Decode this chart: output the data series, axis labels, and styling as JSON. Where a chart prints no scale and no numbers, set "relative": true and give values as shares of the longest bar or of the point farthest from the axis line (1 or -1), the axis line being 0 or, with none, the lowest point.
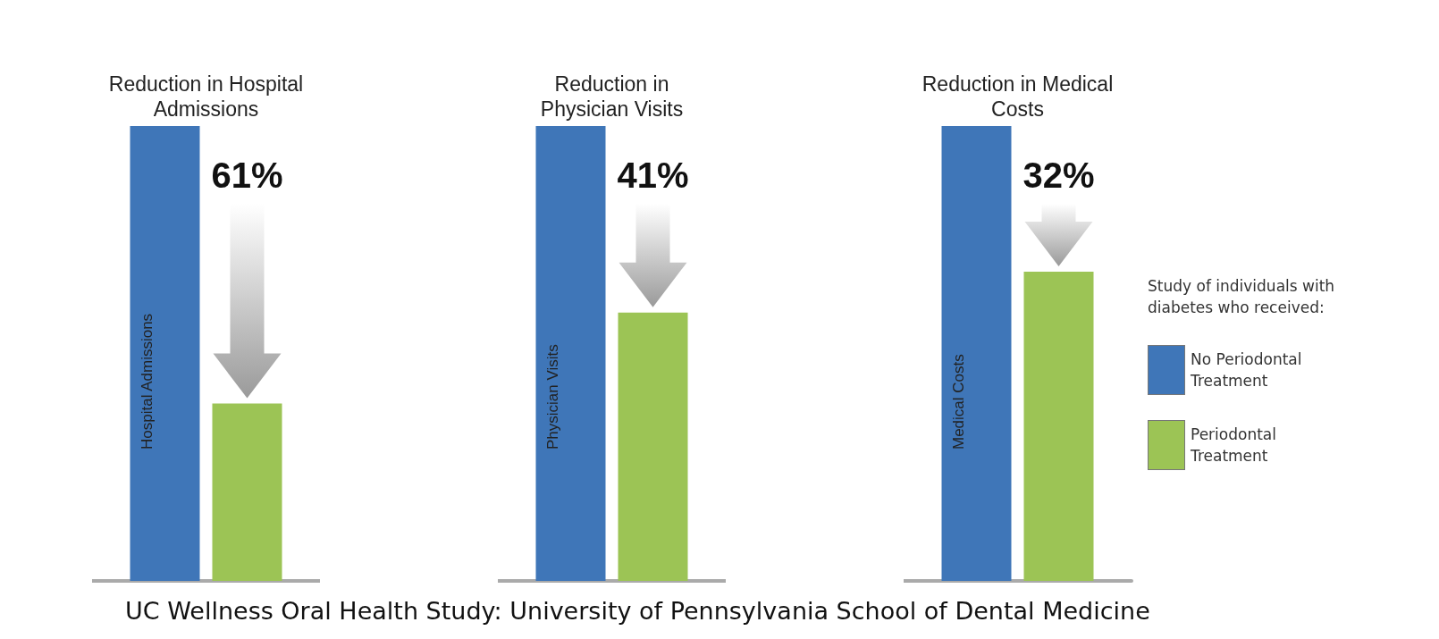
{
  "chart_data": [
    {
      "type": "bar",
      "title": "Reduction in Hospital Admissions",
      "ylabel": "Hospital Admissions",
      "relative": true,
      "categories": [
        null
      ],
      "annotations": [
        "61%",
        "UC Wellness Oral Health Study: University of Pennsylvania School of Dental Medicine"
      ],
      "series": [
        {
          "color": "#3f76b8",
          "values": [
            1
          ]
        },
        {
          "color": "#9cc455",
          "values": [
            0.39
          ]
        }
      ]
    },
    {
      "type": "bar",
      "title": "Reduction in Physician Visits",
      "ylabel": "Physician Visits",
      "relative": true,
      "categories": [
        null
      ],
      "annotations": [
        "41%"
      ],
      "series": [
        {
          "color": "#3f76b8",
          "values": [
            1
          ]
        },
        {
          "color": "#9cc455",
          "values": [
            0.59
          ]
        }
      ]
    },
    {
      "type": "bar",
      "title": "Reduction in Medical Costs",
      "ylabel": "Medical Costs",
      "relative": true,
      "categories": [
        null
      ],
      "annotations": [
        "32%"
      ],
      "legend": "right",
      "legend_title": "Study of individuals with diabetes who received:",
      "series": [
        {
          "name": "No Periodontal Treatment",
          "color": "#3f76b8",
          "values": [
            1
          ]
        },
        {
          "name": "Periodontal Treatment",
          "color": "#9cc455",
          "values": [
            0.68
          ]
        }
      ]
    }
  ]
}
